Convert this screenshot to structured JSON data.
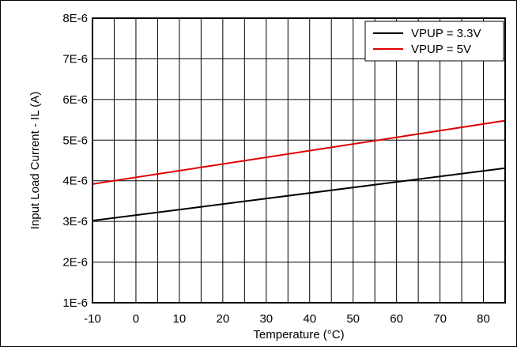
{
  "chart_data": {
    "type": "line",
    "title": "",
    "xlabel": "Temperature (°C)",
    "ylabel": "Input Load Current - IL (A)",
    "xlim": [
      -10,
      85
    ],
    "ylim": [
      1e-06,
      8e-06
    ],
    "x_ticks": [
      -10,
      0,
      10,
      20,
      30,
      40,
      50,
      60,
      70,
      80
    ],
    "x_tick_labels": [
      "-10",
      "0",
      "10",
      "20",
      "30",
      "40",
      "50",
      "60",
      "70",
      "80"
    ],
    "y_ticks": [
      1e-06,
      2e-06,
      3e-06,
      4e-06,
      5e-06,
      6e-06,
      7e-06,
      8e-06
    ],
    "y_tick_labels": [
      "1E-6",
      "2E-6",
      "3E-6",
      "4E-6",
      "5E-6",
      "6E-6",
      "7E-6",
      "8E-6"
    ],
    "grid": true,
    "x_minor_step": 5,
    "legend_position": "top-right",
    "series": [
      {
        "name": "VPUP = 3.3V",
        "color": "#000000",
        "x": [
          -10,
          85
        ],
        "y": [
          3.02e-06,
          4.31e-06
        ]
      },
      {
        "name": "VPUP = 5V",
        "color": "#e00000",
        "x": [
          -10,
          85
        ],
        "y": [
          3.92e-06,
          5.48e-06
        ]
      }
    ]
  }
}
